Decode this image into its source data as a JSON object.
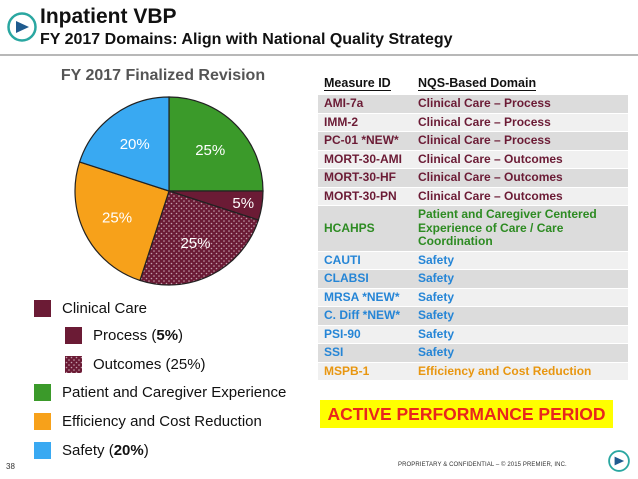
{
  "header": {
    "title_line1": "Inpatient VBP",
    "title_line2": "FY 2017 Domains: Align with National Quality Strategy"
  },
  "colors": {
    "clinical_care": "#6b1b35",
    "patient_experience": "#3b9a2a",
    "efficiency": "#f7a11a",
    "safety": "#39a9f2",
    "outcome_text": "#6b1b35",
    "process_text": "#6b1b35",
    "green_text": "#2d8b22",
    "blue_text": "#2585d6",
    "orange_text": "#e89610"
  },
  "chart_data": {
    "type": "pie",
    "title": "FY 2017 Finalized Revision",
    "slices": [
      {
        "name": "Patient and Caregiver Experience",
        "value": 25,
        "label": "25%",
        "color": "#3b9a2a"
      },
      {
        "name": "Process",
        "value": 5,
        "label": "5%",
        "color": "#6b1b35"
      },
      {
        "name": "Outcomes",
        "value": 25,
        "label": "25%",
        "color": "#6b1b35",
        "pattern": "dotted"
      },
      {
        "name": "Efficiency and Cost Reduction",
        "value": 25,
        "label": "25%",
        "color": "#f7a11a"
      },
      {
        "name": "Safety",
        "value": 20,
        "label": "20%",
        "color": "#39a9f2"
      }
    ]
  },
  "legend": {
    "clinical_care": "Clinical Care",
    "process_prefix": "Process (",
    "process_value": "5%",
    "process_suffix": ")",
    "outcomes": "Outcomes (25%)",
    "patient_experience": "Patient and Caregiver Experience",
    "efficiency": "Efficiency and Cost Reduction",
    "safety_prefix": "Safety (",
    "safety_value": "20%",
    "safety_suffix": ")"
  },
  "table": {
    "headers": {
      "measure": "Measure ID",
      "domain": "NQS-Based Domain"
    },
    "rows": [
      {
        "measure": "AMI-7a",
        "domain": "Clinical Care – Process",
        "group": "clinical"
      },
      {
        "measure": "IMM-2",
        "domain": "Clinical Care – Process",
        "group": "clinical"
      },
      {
        "measure": "PC-01 *NEW*",
        "domain": "Clinical Care – Process",
        "group": "clinical"
      },
      {
        "measure": "MORT-30-AMI",
        "domain": "Clinical Care – Outcomes",
        "group": "clinical"
      },
      {
        "measure": "MORT-30-HF",
        "domain": "Clinical Care – Outcomes",
        "group": "clinical"
      },
      {
        "measure": "MORT-30-PN",
        "domain": "Clinical Care – Outcomes",
        "group": "clinical"
      },
      {
        "measure": "HCAHPS",
        "domain": "Patient and Caregiver Centered Experience of Care / Care Coordination",
        "group": "experience"
      },
      {
        "measure": "CAUTI",
        "domain": "Safety",
        "group": "safety"
      },
      {
        "measure": "CLABSI",
        "domain": "Safety",
        "group": "safety"
      },
      {
        "measure": "MRSA *NEW*",
        "domain": "Safety",
        "group": "safety"
      },
      {
        "measure": "C. Diff *NEW*",
        "domain": "Safety",
        "group": "safety"
      },
      {
        "measure": "PSI-90",
        "domain": "Safety",
        "group": "safety"
      },
      {
        "measure": "SSI",
        "domain": "Safety",
        "group": "safety"
      },
      {
        "measure": "MSPB-1",
        "domain": "Efficiency and Cost Reduction",
        "group": "efficiency"
      }
    ]
  },
  "banner": "ACTIVE PERFORMANCE PERIOD",
  "footer": {
    "page_number": "38",
    "confidential": "PROPRIETARY & CONFIDENTIAL – © 2015 PREMIER, INC."
  }
}
